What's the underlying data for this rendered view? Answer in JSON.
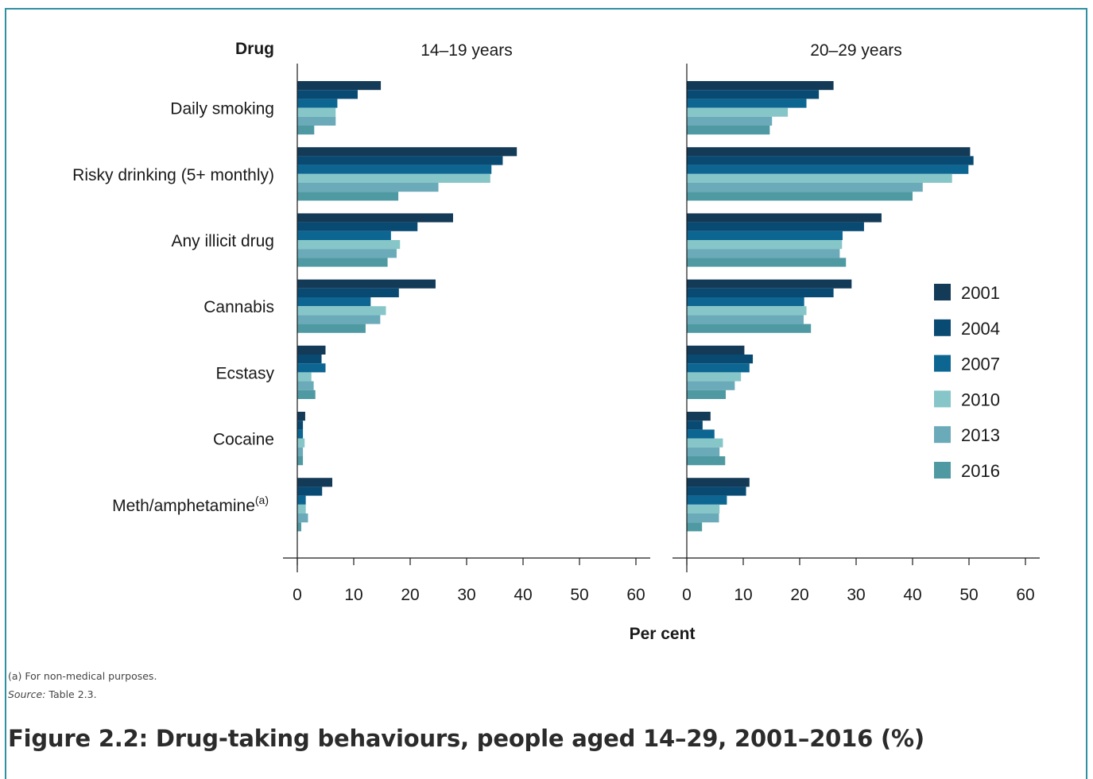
{
  "figure": {
    "title": "Figure 2.2: Drug-taking behaviours, people aged 14–29, 2001–2016 (%)",
    "footnote": "(a)   For non-medical purposes.",
    "source_label": "Source:",
    "source_value": "Table 2.3."
  },
  "chart_data": {
    "type": "bar",
    "orientation": "horizontal",
    "ylabel": "Drug",
    "xlabel": "Per cent",
    "xlim": [
      0,
      60
    ],
    "xticks": [
      0,
      10,
      20,
      30,
      40,
      50,
      60
    ],
    "categories": [
      "Daily smoking",
      "Risky drinking (5+ monthly)",
      "Any illicit drug",
      "Cannabis",
      "Ecstasy",
      "Cocaine",
      "Meth/amphetamine"
    ],
    "category_superscripts": [
      "",
      "",
      "",
      "",
      "",
      "",
      "(a)"
    ],
    "legend_position": "right",
    "series_names": [
      "2001",
      "2004",
      "2007",
      "2010",
      "2013",
      "2016"
    ],
    "colors": [
      "#133a57",
      "#094a72",
      "#0c6691",
      "#86c6c8",
      "#6aaab9",
      "#4f9aa2"
    ],
    "panels": [
      {
        "title": "14–19 years",
        "series": [
          {
            "name": "2001",
            "values": [
              14.8,
              38.9,
              27.6,
              24.5,
              5.0,
              1.4,
              6.2
            ]
          },
          {
            "name": "2004",
            "values": [
              10.7,
              36.4,
              21.3,
              18.0,
              4.3,
              1.0,
              4.4
            ]
          },
          {
            "name": "2007",
            "values": [
              7.1,
              34.4,
              16.6,
              13.0,
              5.0,
              1.0,
              1.5
            ]
          },
          {
            "name": "2010",
            "values": [
              6.8,
              34.2,
              18.2,
              15.7,
              2.5,
              1.3,
              1.5
            ]
          },
          {
            "name": "2013",
            "values": [
              6.8,
              25.0,
              17.6,
              14.7,
              2.9,
              1.0,
              1.9
            ]
          },
          {
            "name": "2016",
            "values": [
              3.0,
              17.9,
              16.0,
              12.1,
              3.2,
              1.0,
              0.7
            ]
          }
        ]
      },
      {
        "title": "20–29 years",
        "series": [
          {
            "name": "2001",
            "values": [
              26.0,
              50.2,
              34.5,
              29.2,
              10.2,
              4.2,
              11.1
            ]
          },
          {
            "name": "2004",
            "values": [
              23.4,
              50.8,
              31.4,
              26.0,
              11.7,
              2.8,
              10.5
            ]
          },
          {
            "name": "2007",
            "values": [
              21.2,
              49.9,
              27.6,
              20.8,
              11.1,
              4.9,
              7.1
            ]
          },
          {
            "name": "2010",
            "values": [
              17.9,
              47.0,
              27.5,
              21.2,
              9.6,
              6.4,
              5.8
            ]
          },
          {
            "name": "2013",
            "values": [
              15.1,
              41.8,
              27.1,
              20.7,
              8.5,
              5.8,
              5.7
            ]
          },
          {
            "name": "2016",
            "values": [
              14.7,
              40.0,
              28.2,
              22.0,
              6.9,
              6.8,
              2.7
            ]
          }
        ]
      }
    ]
  }
}
